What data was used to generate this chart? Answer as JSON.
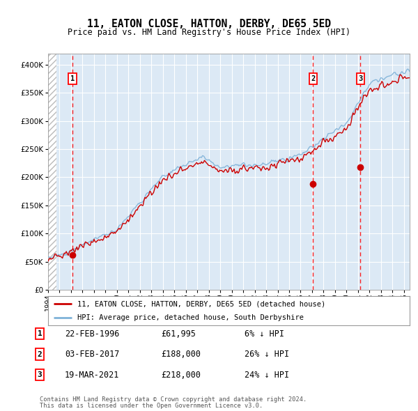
{
  "title": "11, EATON CLOSE, HATTON, DERBY, DE65 5ED",
  "subtitle": "Price paid vs. HM Land Registry's House Price Index (HPI)",
  "ylim": [
    0,
    420000
  ],
  "xlim": [
    1994.0,
    2025.5
  ],
  "yticks": [
    0,
    50000,
    100000,
    150000,
    200000,
    250000,
    300000,
    350000,
    400000
  ],
  "ytick_labels": [
    "£0",
    "£50K",
    "£100K",
    "£150K",
    "£200K",
    "£250K",
    "£300K",
    "£350K",
    "£400K"
  ],
  "xticks": [
    1994,
    1995,
    1996,
    1997,
    1998,
    1999,
    2000,
    2001,
    2002,
    2003,
    2004,
    2005,
    2006,
    2007,
    2008,
    2009,
    2010,
    2011,
    2012,
    2013,
    2014,
    2015,
    2016,
    2017,
    2018,
    2019,
    2020,
    2021,
    2022,
    2023,
    2024,
    2025
  ],
  "plot_bg_color": "#dce9f5",
  "grid_color": "#ffffff",
  "sale_dates": [
    1996.13,
    2017.09,
    2021.21
  ],
  "sale_prices": [
    61995,
    188000,
    218000
  ],
  "sale_labels": [
    "1",
    "2",
    "3"
  ],
  "sale_date_strs": [
    "22-FEB-1996",
    "03-FEB-2017",
    "19-MAR-2021"
  ],
  "sale_price_strs": [
    "£61,995",
    "£188,000",
    "£218,000"
  ],
  "sale_hpi_strs": [
    "6% ↓ HPI",
    "26% ↓ HPI",
    "24% ↓ HPI"
  ],
  "red_line_color": "#cc0000",
  "blue_line_color": "#7fb2d8",
  "legend_label_red": "11, EATON CLOSE, HATTON, DERBY, DE65 5ED (detached house)",
  "legend_label_blue": "HPI: Average price, detached house, South Derbyshire",
  "footer1": "Contains HM Land Registry data © Crown copyright and database right 2024.",
  "footer2": "This data is licensed under the Open Government Licence v3.0."
}
